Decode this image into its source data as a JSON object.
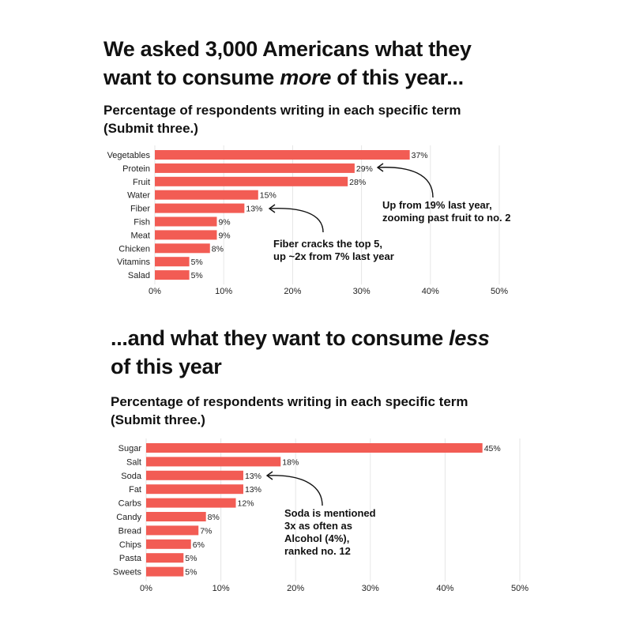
{
  "top": {
    "title_line1": "We asked 3,000 Americans what they",
    "title_line2_pre": "want to consume ",
    "title_line2_em": "more",
    "title_line2_post": " of this year...",
    "subtitle_line1": "Percentage of respondents writing in each specific term",
    "subtitle_line2": "(Submit three.)",
    "annotations": [
      {
        "lines": [
          "Up from 19% last year,",
          "zooming past fruit to no. 2"
        ]
      },
      {
        "lines": [
          "Fiber cracks the top 5,",
          "up ~2x from 7% last year"
        ]
      }
    ]
  },
  "bottom": {
    "title_line1_pre": "...and what they want to consume ",
    "title_line1_em": "less",
    "title_line2": "of this year",
    "subtitle_line1": "Percentage of respondents writing in each specific term",
    "subtitle_line2": "(Submit three.)",
    "annotations": [
      {
        "lines": [
          "Soda is mentioned",
          "3x as often as",
          "Alcohol (4%),",
          "ranked no. 12"
        ]
      }
    ]
  },
  "chart_data": [
    {
      "type": "bar",
      "orientation": "horizontal",
      "title": "We asked 3,000 Americans what they want to consume more of this year...",
      "subtitle": "Percentage of respondents writing in each specific term (Submit three.)",
      "categories": [
        "Vegetables",
        "Protein",
        "Fruit",
        "Water",
        "Fiber",
        "Fish",
        "Meat",
        "Chicken",
        "Vitamins",
        "Salad"
      ],
      "values": [
        37,
        29,
        28,
        15,
        13,
        9,
        9,
        8,
        5,
        5
      ],
      "value_labels": [
        "37%",
        "29%",
        "28%",
        "15%",
        "13%",
        "9%",
        "9%",
        "8%",
        "5%",
        "5%"
      ],
      "xlim": [
        0,
        50
      ],
      "ticks": [
        0,
        10,
        20,
        30,
        40,
        50
      ],
      "tick_labels": [
        "0%",
        "10%",
        "20%",
        "30%",
        "40%",
        "50%"
      ],
      "grid": true,
      "bar_color": "#f25c54"
    },
    {
      "type": "bar",
      "orientation": "horizontal",
      "title": "...and what they want to consume less of this year",
      "subtitle": "Percentage of respondents writing in each specific term (Submit three.)",
      "categories": [
        "Sugar",
        "Salt",
        "Soda",
        "Fat",
        "Carbs",
        "Candy",
        "Bread",
        "Chips",
        "Pasta",
        "Sweets"
      ],
      "values": [
        45,
        18,
        13,
        13,
        12,
        8,
        7,
        6,
        5,
        5
      ],
      "value_labels": [
        "45%",
        "18%",
        "13%",
        "13%",
        "12%",
        "8%",
        "7%",
        "6%",
        "5%",
        "5%"
      ],
      "xlim": [
        0,
        50
      ],
      "ticks": [
        0,
        10,
        20,
        30,
        40,
        50
      ],
      "tick_labels": [
        "0%",
        "10%",
        "20%",
        "30%",
        "40%",
        "50%"
      ],
      "grid": true,
      "bar_color": "#f25c54"
    }
  ]
}
